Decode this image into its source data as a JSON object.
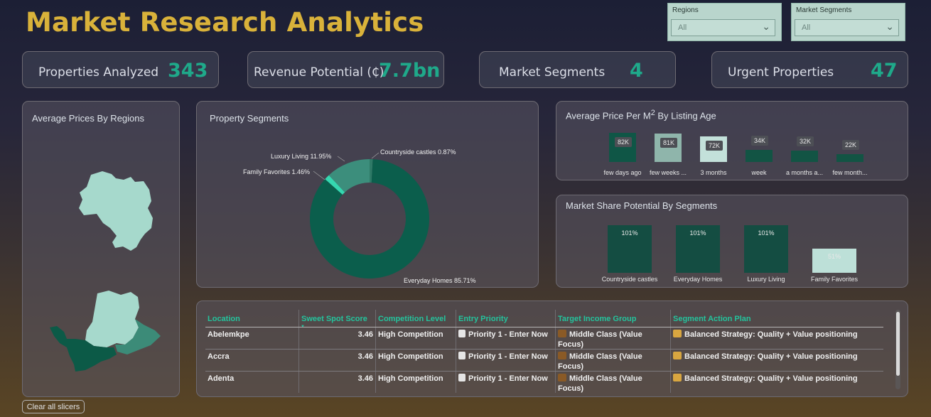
{
  "header": {
    "title": "Market Research Analytics"
  },
  "slicers": [
    {
      "label": "Regions",
      "value": "All"
    },
    {
      "label": "Market Segments",
      "value": "All"
    }
  ],
  "kpis": [
    {
      "label": "Properties Analyzed",
      "value": "343"
    },
    {
      "label": "Revenue Potential (₵)",
      "value": "7.7bn"
    },
    {
      "label": "Market Segments",
      "value": "4"
    },
    {
      "label": "Urgent Properties",
      "value": "47"
    }
  ],
  "map_card": {
    "title": "Average Prices By Regions"
  },
  "segments_card": {
    "title": "Property Segments",
    "labels": {
      "luxury": "Luxury Living 11.95%",
      "countryside": "Countryside castles 0.87%",
      "family": "Family Favorites 1.46%",
      "everyday": "Everyday Homes 85.71%"
    }
  },
  "listing_card": {
    "title_prefix": "Average Price Per M",
    "title_sup": "2",
    "title_suffix": " By Listing Age"
  },
  "share_card": {
    "title": "Market Share Potential By Segments"
  },
  "chart_data": [
    {
      "type": "pie",
      "title": "Property Segments",
      "categories": [
        "Everyday Homes",
        "Luxury Living",
        "Family Favorites",
        "Countryside castles"
      ],
      "values": [
        85.71,
        11.95,
        1.46,
        0.87
      ],
      "colors": [
        "#0b5e4c",
        "#3c8e7c",
        "#35d7b0",
        "#2e7a67"
      ]
    },
    {
      "type": "bar",
      "title": "Average Price Per M2 By Listing Age",
      "categories": [
        "few days ago",
        "few weeks ...",
        "3 months",
        "week",
        "a months a...",
        "few month..."
      ],
      "values": [
        82,
        81,
        72,
        34,
        32,
        22
      ],
      "data_labels": [
        "82K",
        "81K",
        "72K",
        "34K",
        "32K",
        "22K"
      ],
      "colors": [
        "#0f5646",
        "#8fb5ab",
        "#c3e1da",
        "#125444",
        "#125444",
        "#125444"
      ],
      "bar_heights_scale": [
        0.95,
        0.92,
        0.82,
        0.38,
        0.35,
        0.24
      ]
    },
    {
      "type": "bar",
      "title": "Market Share Potential By Segments",
      "categories": [
        "Countryside castles",
        "Everyday Homes",
        "Luxury Living",
        "Family Favorites"
      ],
      "values": [
        101,
        101,
        101,
        51
      ],
      "data_labels": [
        "101%",
        "101%",
        "101%",
        "51%"
      ],
      "colors": [
        "#144d42",
        "#144d42",
        "#144d42",
        "#bde0d8"
      ]
    }
  ],
  "table": {
    "columns": [
      "Location",
      "Sweet Spot Score",
      "Competition Level",
      "Entry Priority",
      "Target Income Group",
      "Segment Action Plan"
    ],
    "rows": [
      [
        "Abelemkpe",
        "3.46",
        "High Competition",
        "Priority 1 - Enter Now",
        "Middle Class (Value Focus)",
        "Balanced Strategy: Quality + Value positioning"
      ],
      [
        "Accra",
        "3.46",
        "High Competition",
        "Priority 1 - Enter Now",
        "Middle Class (Value Focus)",
        "Balanced Strategy: Quality + Value positioning"
      ],
      [
        "Adenta",
        "3.46",
        "High Competition",
        "Priority 1 - Enter Now",
        "Middle Class (Value Focus)",
        "Balanced Strategy: Quality + Value positioning"
      ]
    ]
  },
  "footer": {
    "clear_label": "Clear all slicers"
  }
}
